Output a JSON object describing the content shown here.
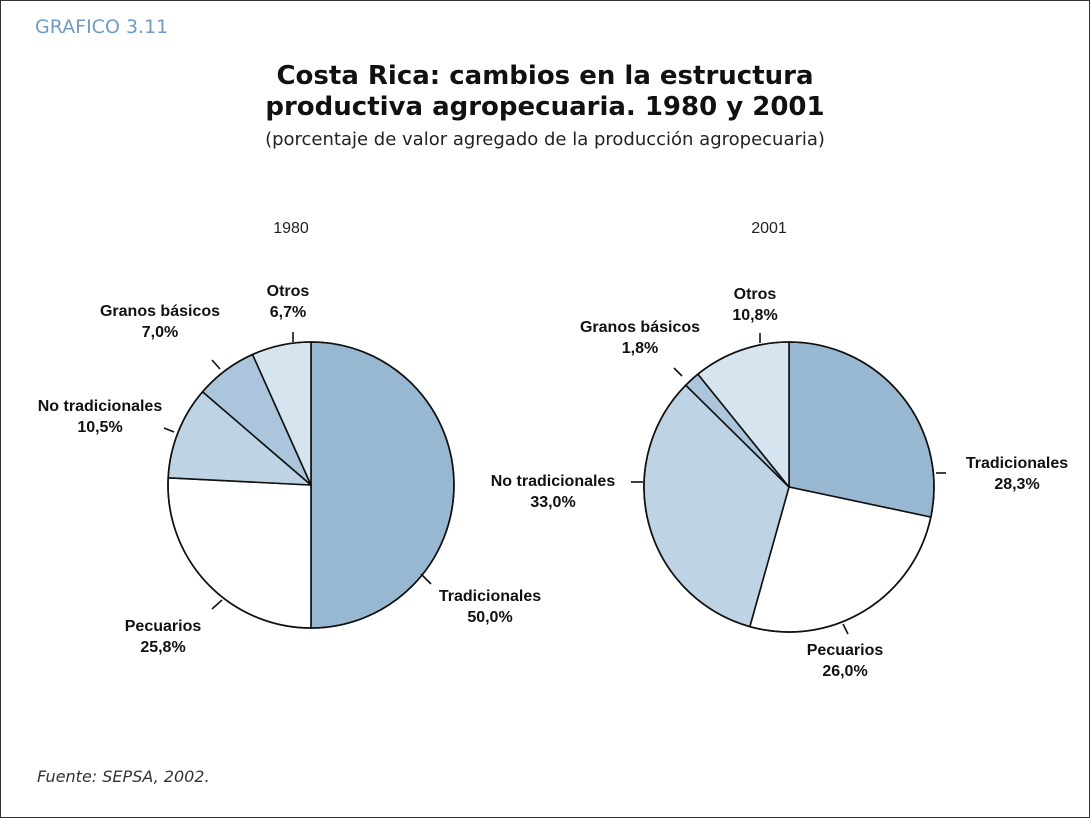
{
  "header": {
    "label": "GRAFICO 3.11",
    "title_line1": "Costa Rica: cambios en la estructura",
    "title_line2": "productiva agropecuaria. 1980 y 2001",
    "subtitle": "(porcentaje de valor agregado de la producción agropecuaria)"
  },
  "footer": {
    "source": "Fuente: SEPSA, 2002."
  },
  "colors": {
    "accent": "#6f9bc4",
    "tradicionales": "#97b8d0",
    "no_tradicionales": "#bed4e4",
    "granos": "#aac5dc",
    "otros": "#d6e4ef",
    "pecuarios": "#ffffff"
  },
  "chart_data": [
    {
      "type": "pie",
      "title": "1980",
      "slices": [
        {
          "label": "Tradicionales",
          "value": 50.0,
          "value_label": "50,0%"
        },
        {
          "label": "Pecuarios",
          "value": 25.8,
          "value_label": "25,8%"
        },
        {
          "label": "No tradicionales",
          "value": 10.5,
          "value_label": "10,5%"
        },
        {
          "label": "Granos básicos",
          "value": 7.0,
          "value_label": "7,0%"
        },
        {
          "label": "Otros",
          "value": 6.7,
          "value_label": "6,7%"
        }
      ]
    },
    {
      "type": "pie",
      "title": "2001",
      "slices": [
        {
          "label": "Tradicionales",
          "value": 28.3,
          "value_label": "28,3%"
        },
        {
          "label": "Pecuarios",
          "value": 26.0,
          "value_label": "26,0%"
        },
        {
          "label": "No tradicionales",
          "value": 33.0,
          "value_label": "33,0%"
        },
        {
          "label": "Granos básicos",
          "value": 1.8,
          "value_label": "1,8%"
        },
        {
          "label": "Otros",
          "value": 10.8,
          "value_label": "10,8%"
        }
      ]
    }
  ]
}
